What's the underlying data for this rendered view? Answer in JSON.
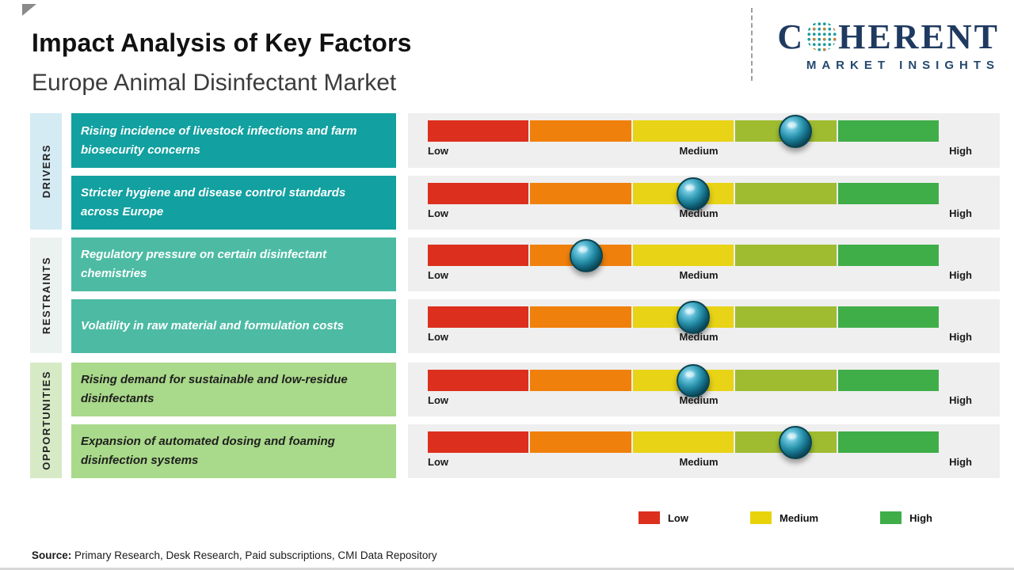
{
  "header": {
    "title": "Impact Analysis of Key Factors",
    "subtitle": "Europe Animal Disinfectant Market"
  },
  "logo": {
    "part1": "C",
    "part2": "HERENT",
    "subtitle": "MARKET INSIGHTS",
    "brand_color": "#1F3A60",
    "globe_icon": "dotted-globe"
  },
  "sidebar": {
    "groups": [
      {
        "label": "DRIVERS",
        "bg": "#D5EBF4"
      },
      {
        "label": "RESTRAINTS",
        "bg": "#ECF2F0"
      },
      {
        "label": "OPPORTUNITIES",
        "bg": "#D6EAC6"
      }
    ]
  },
  "scale": {
    "low": "Low",
    "medium": "Medium",
    "high": "High"
  },
  "bars": {
    "segment_colors": [
      "#DC2F1E",
      "#F0800C",
      "#E8D316",
      "#9FBC30",
      "#3FAE49"
    ],
    "panel_bg": "#EFEFEF",
    "marker_outer": "#0B4452",
    "marker_inner": "#6CC5DD"
  },
  "rows": [
    {
      "group": "DRIVERS",
      "factor": "Rising incidence of livestock infections and farm biosecurity concerns",
      "impact": 0.72,
      "box_bg": "#12A0A0",
      "text_color": "#FFFFFF"
    },
    {
      "group": "DRIVERS",
      "factor": "Stricter hygiene and disease control standards across Europe",
      "impact": 0.52,
      "box_bg": "#12A0A0",
      "text_color": "#FFFFFF"
    },
    {
      "group": "RESTRAINTS",
      "factor": "Regulatory pressure on certain disinfectant chemistries",
      "impact": 0.31,
      "box_bg": "#4DBBA4",
      "text_color": "#FFFFFF"
    },
    {
      "group": "RESTRAINTS",
      "factor": "Volatility in raw material and formulation costs",
      "impact": 0.52,
      "box_bg": "#4DBBA4",
      "text_color": "#FFFFFF"
    },
    {
      "group": "OPPORTUNITIES",
      "factor": "Rising demand for sustainable and low-residue disinfectants",
      "impact": 0.52,
      "box_bg": "#A9D98A",
      "text_color": "#1F1F1F"
    },
    {
      "group": "OPPORTUNITIES",
      "factor": "Expansion of automated dosing and foaming disinfection systems",
      "impact": 0.72,
      "box_bg": "#A9D98A",
      "text_color": "#1F1F1F"
    }
  ],
  "legend": [
    {
      "label": "Low",
      "color": "#DC2F1E"
    },
    {
      "label": "Medium",
      "color": "#E8D30A"
    },
    {
      "label": "High",
      "color": "#3FAE49"
    }
  ],
  "source": {
    "label": "Source:",
    "text": " Primary Research, Desk Research, Paid subscriptions, CMI Data Repository"
  },
  "chart_data": {
    "type": "bar",
    "title": "Impact Analysis of Key Factors",
    "subtitle": "Europe Animal Disinfectant Market",
    "categories": [
      "Rising incidence of livestock infections and farm biosecurity concerns",
      "Stricter hygiene and disease control standards across Europe",
      "Regulatory pressure on certain disinfectant chemistries",
      "Volatility in raw material and formulation costs",
      "Rising demand for sustainable and low-residue disinfectants",
      "Expansion of automated dosing and foaming disinfection systems"
    ],
    "groups": [
      "Drivers",
      "Drivers",
      "Restraints",
      "Restraints",
      "Opportunities",
      "Opportunities"
    ],
    "values": [
      0.72,
      0.52,
      0.31,
      0.52,
      0.52,
      0.72
    ],
    "value_scale": "0 = Low, 0.5 = Medium, 1 = High",
    "xlim": [
      0,
      1
    ],
    "scale_labels": [
      "Low",
      "Medium",
      "High"
    ],
    "legend": [
      "Low",
      "Medium",
      "High"
    ],
    "legend_position": "bottom",
    "grid": false
  }
}
